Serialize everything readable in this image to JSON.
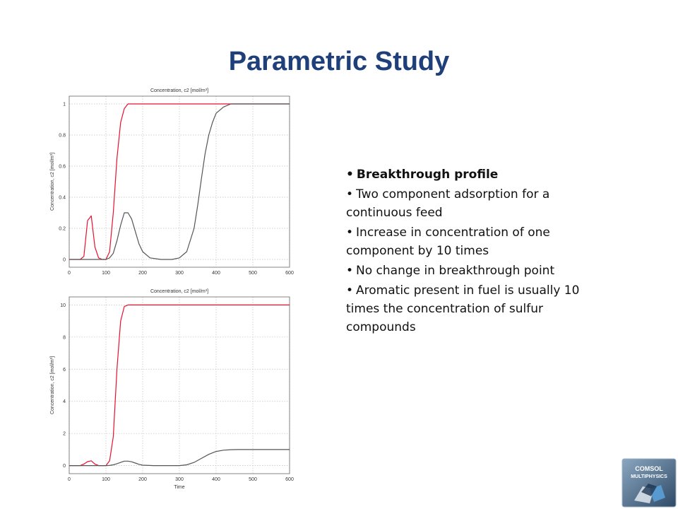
{
  "slide": {
    "title": "Parametric Study",
    "bullets": [
      "Breakthrough profile",
      "Two component adsorption for a continuous feed",
      "Increase in concentration of one component by 10 times",
      "No change in breakthrough point",
      "Aromatic present in fuel is usually 10 times the concentration of sulfur compounds"
    ],
    "logo": {
      "text_top": "COMSOL",
      "text_bottom": "MULTIPHYSICS"
    }
  },
  "colors": {
    "title": "#1f3f7a",
    "series_red": "#e8102e",
    "series_gray": "#555555",
    "grid": "#c0c0c0"
  },
  "chart_data": [
    {
      "type": "line",
      "title": "Concentration, c2 [mol/m³]",
      "xlabel": "",
      "ylabel": "Concentration, c2 [mol/m³]",
      "xlim": [
        0,
        600
      ],
      "ylim": [
        -0.05,
        1.05
      ],
      "xticks": [
        0,
        100,
        200,
        300,
        400,
        500,
        600
      ],
      "yticks": [
        0,
        0.2,
        0.4,
        0.6,
        0.8,
        1
      ],
      "ytick_labels": [
        "0",
        "0.2",
        "0.4",
        "0.6",
        "0.8",
        "1"
      ],
      "grid": true,
      "series": [
        {
          "color": "red",
          "x": [
            0,
            30,
            40,
            50,
            60,
            70,
            80,
            90,
            100,
            110,
            120,
            130,
            140,
            150,
            160,
            170,
            180,
            600
          ],
          "y": [
            0,
            0,
            0.02,
            0.25,
            0.28,
            0.08,
            0.01,
            0,
            0,
            0.05,
            0.3,
            0.65,
            0.88,
            0.97,
            1,
            1,
            1,
            1
          ]
        },
        {
          "color": "gray",
          "x": [
            0,
            80,
            90,
            100,
            110,
            120,
            130,
            140,
            150,
            160,
            170,
            180,
            190,
            200,
            220,
            250,
            280,
            300,
            320,
            340,
            350,
            360,
            370,
            380,
            390,
            400,
            420,
            440,
            460,
            480,
            600
          ],
          "y": [
            0,
            0,
            0,
            0,
            0.01,
            0.04,
            0.12,
            0.22,
            0.3,
            0.3,
            0.26,
            0.18,
            0.1,
            0.05,
            0.01,
            0,
            0,
            0.01,
            0.05,
            0.2,
            0.35,
            0.52,
            0.68,
            0.8,
            0.88,
            0.94,
            0.98,
            1,
            1,
            1,
            1
          ]
        }
      ]
    },
    {
      "type": "line",
      "title": "Concentration, c2 [mol/m³]",
      "xlabel": "Time",
      "ylabel": "Concentration, c2 [mol/m³]",
      "xlim": [
        0,
        600
      ],
      "ylim": [
        -0.5,
        10.5
      ],
      "xticks": [
        0,
        100,
        200,
        300,
        400,
        500,
        600
      ],
      "yticks": [
        0,
        2,
        4,
        6,
        8,
        10
      ],
      "ytick_labels": [
        "0",
        "2",
        "4",
        "6",
        "8",
        "10"
      ],
      "grid": true,
      "series": [
        {
          "color": "red",
          "x": [
            0,
            30,
            40,
            50,
            60,
            70,
            80,
            90,
            100,
            110,
            120,
            130,
            140,
            150,
            160,
            600
          ],
          "y": [
            0,
            0,
            0.1,
            0.25,
            0.3,
            0.1,
            0,
            0,
            0,
            0.3,
            1.8,
            6,
            9,
            9.9,
            10,
            10
          ]
        },
        {
          "color": "gray",
          "x": [
            0,
            100,
            110,
            120,
            130,
            140,
            150,
            160,
            170,
            180,
            190,
            200,
            230,
            260,
            300,
            320,
            340,
            360,
            380,
            400,
            420,
            440,
            460,
            480,
            600
          ],
          "y": [
            0,
            0,
            0.01,
            0.05,
            0.12,
            0.2,
            0.28,
            0.28,
            0.24,
            0.16,
            0.08,
            0.03,
            0,
            0,
            0,
            0.05,
            0.2,
            0.45,
            0.7,
            0.88,
            0.96,
            0.99,
            1,
            1,
            1
          ]
        }
      ]
    }
  ]
}
